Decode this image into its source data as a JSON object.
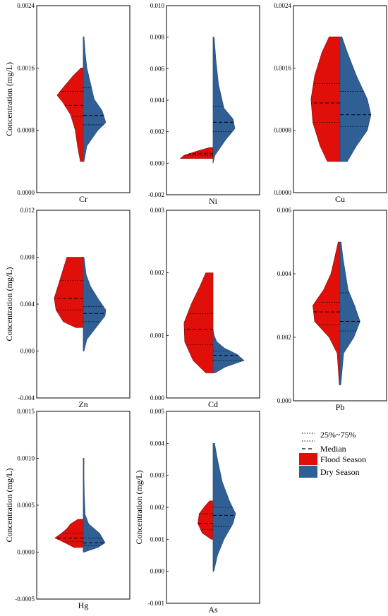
{
  "colors": {
    "flood": "#e00f0a",
    "dry": "#2f5f95",
    "dry_edge": "#2e4f78",
    "flood_edge": "#7a0f0a"
  },
  "legend": {
    "iqr_label": "25%~75%",
    "median_label": "Median",
    "flood_label": "Flood Season",
    "dry_label": "Dry Season"
  },
  "chart_data": [
    {
      "type": "violin",
      "category": "Cr",
      "ylabel": "Concentration (mg/L)",
      "ylim": [
        0,
        0.0024
      ],
      "yticks": [
        "0.0000",
        "0.0008",
        "0.0016",
        "0.0024"
      ],
      "flood": {
        "profile": [
          [
            0.0004,
            0.08
          ],
          [
            0.0006,
            0.16
          ],
          [
            0.0008,
            0.22
          ],
          [
            0.001,
            0.35
          ],
          [
            0.00115,
            0.55
          ],
          [
            0.00125,
            0.72
          ],
          [
            0.00135,
            0.55
          ],
          [
            0.0015,
            0.28
          ],
          [
            0.0016,
            0.06
          ]
        ],
        "median": 0.00112,
        "q1": 0.00098,
        "q3": 0.0013
      },
      "dry": {
        "profile": [
          [
            0.0004,
            0.02
          ],
          [
            0.0006,
            0.1
          ],
          [
            0.0008,
            0.4
          ],
          [
            0.0009,
            0.62
          ],
          [
            0.00105,
            0.52
          ],
          [
            0.0012,
            0.3
          ],
          [
            0.0014,
            0.2
          ],
          [
            0.0016,
            0.1
          ],
          [
            0.0018,
            0.05
          ],
          [
            0.002,
            0.02
          ]
        ],
        "median": 0.00099,
        "q1": 0.00087,
        "q3": 0.00135
      }
    },
    {
      "type": "violin",
      "category": "Ni",
      "ylabel": "",
      "ylim": [
        -0.002,
        0.01
      ],
      "yticks": [
        "-0.002",
        "0.000",
        "0.002",
        "0.004",
        "0.006",
        "0.008",
        "0.010"
      ],
      "flood": {
        "profile": [
          [
            0.0003,
            0.9
          ],
          [
            0.0005,
            0.8
          ],
          [
            0.0008,
            0.4
          ],
          [
            0.001,
            0.1
          ]
        ],
        "median": 0.0006,
        "q1": 0.0005,
        "q3": 0.0007
      },
      "dry": {
        "profile": [
          [
            0.0,
            0.0
          ],
          [
            0.0005,
            0.05
          ],
          [
            0.0015,
            0.35
          ],
          [
            0.0022,
            0.6
          ],
          [
            0.0028,
            0.55
          ],
          [
            0.0035,
            0.3
          ],
          [
            0.005,
            0.15
          ],
          [
            0.0065,
            0.08
          ],
          [
            0.008,
            0.03
          ]
        ],
        "median": 0.0026,
        "q1": 0.002,
        "q3": 0.0036
      }
    },
    {
      "type": "violin",
      "category": "Cu",
      "ylabel": "",
      "ylim": [
        0,
        0.0024
      ],
      "yticks": [
        "0.0000",
        "0.0008",
        "0.0016",
        "0.0024"
      ],
      "flood": {
        "profile": [
          [
            0.0004,
            0.35
          ],
          [
            0.0006,
            0.55
          ],
          [
            0.0009,
            0.75
          ],
          [
            0.0012,
            0.8
          ],
          [
            0.0015,
            0.7
          ],
          [
            0.0018,
            0.5
          ],
          [
            0.002,
            0.3
          ]
        ],
        "median": 0.00115,
        "q1": 0.0009,
        "q3": 0.0014
      },
      "dry": {
        "profile": [
          [
            0.0004,
            0.2
          ],
          [
            0.0006,
            0.45
          ],
          [
            0.0008,
            0.75
          ],
          [
            0.001,
            0.85
          ],
          [
            0.0012,
            0.75
          ],
          [
            0.0015,
            0.45
          ],
          [
            0.0018,
            0.2
          ],
          [
            0.002,
            0.05
          ]
        ],
        "median": 0.001,
        "q1": 0.00085,
        "q3": 0.0013
      }
    },
    {
      "type": "violin",
      "category": "Zn",
      "ylabel": "Concentration (mg/L)",
      "ylim": [
        -0.004,
        0.012
      ],
      "yticks": [
        "-0.004",
        "0.000",
        "0.004",
        "0.008",
        "0.012"
      ],
      "flood": {
        "profile": [
          [
            0.002,
            0.2
          ],
          [
            0.0025,
            0.55
          ],
          [
            0.0035,
            0.75
          ],
          [
            0.0045,
            0.8
          ],
          [
            0.0055,
            0.7
          ],
          [
            0.007,
            0.55
          ],
          [
            0.008,
            0.45
          ]
        ],
        "median": 0.0045,
        "q1": 0.0035,
        "q3": 0.006
      },
      "dry": {
        "profile": [
          [
            0.0,
            0.02
          ],
          [
            0.001,
            0.1
          ],
          [
            0.002,
            0.35
          ],
          [
            0.003,
            0.6
          ],
          [
            0.0035,
            0.62
          ],
          [
            0.0045,
            0.4
          ],
          [
            0.0055,
            0.2
          ],
          [
            0.0065,
            0.08
          ],
          [
            0.008,
            0.02
          ]
        ],
        "median": 0.0032,
        "q1": 0.0025,
        "q3": 0.0038
      }
    },
    {
      "type": "violin",
      "category": "Cd",
      "ylabel": "",
      "ylim": [
        0,
        0.003
      ],
      "yticks": [
        "0.000",
        "0.001",
        "0.002",
        "0.003"
      ],
      "flood": {
        "profile": [
          [
            0.0004,
            0.2
          ],
          [
            0.0006,
            0.55
          ],
          [
            0.0009,
            0.78
          ],
          [
            0.0012,
            0.8
          ],
          [
            0.0015,
            0.6
          ],
          [
            0.0018,
            0.35
          ],
          [
            0.002,
            0.2
          ]
        ],
        "median": 0.0011,
        "q1": 0.00085,
        "q3": 0.00135
      },
      "dry": {
        "profile": [
          [
            0.0004,
            0.05
          ],
          [
            0.0005,
            0.35
          ],
          [
            0.0006,
            0.85
          ],
          [
            0.0007,
            0.65
          ],
          [
            0.0008,
            0.3
          ],
          [
            0.0009,
            0.1
          ],
          [
            0.001,
            0.03
          ],
          [
            0.0011,
            0.0
          ]
        ],
        "median": 0.00068,
        "q1": 0.0006,
        "q3": 0.00075
      }
    },
    {
      "type": "violin",
      "category": "Pb",
      "ylabel": "",
      "ylim": [
        0,
        0.006
      ],
      "yticks": [
        "0.000",
        "0.002",
        "0.004",
        "0.006"
      ],
      "flood": {
        "profile": [
          [
            0.0005,
            0.02
          ],
          [
            0.0015,
            0.08
          ],
          [
            0.002,
            0.3
          ],
          [
            0.0025,
            0.7
          ],
          [
            0.003,
            0.75
          ],
          [
            0.0035,
            0.45
          ],
          [
            0.004,
            0.25
          ],
          [
            0.0045,
            0.15
          ],
          [
            0.005,
            0.05
          ]
        ],
        "median": 0.0028,
        "q1": 0.0024,
        "q3": 0.0031
      },
      "dry": {
        "profile": [
          [
            0.0005,
            0.02
          ],
          [
            0.0015,
            0.1
          ],
          [
            0.002,
            0.38
          ],
          [
            0.0025,
            0.55
          ],
          [
            0.003,
            0.4
          ],
          [
            0.0035,
            0.22
          ],
          [
            0.004,
            0.15
          ],
          [
            0.0045,
            0.08
          ],
          [
            0.005,
            0.03
          ]
        ],
        "median": 0.0025,
        "q1": 0.0022,
        "q3": 0.0034
      }
    },
    {
      "type": "violin",
      "category": "Hg",
      "ylabel": "Concentration (mg/L)",
      "ylim": [
        -0.0005,
        0.0015
      ],
      "yticks": [
        "-0.0005",
        "0.0000",
        "0.0005",
        "0.0010",
        "0.0015"
      ],
      "flood": {
        "profile": [
          [
            5e-05,
            0.25
          ],
          [
            0.0001,
            0.5
          ],
          [
            0.00015,
            0.78
          ],
          [
            0.0002,
            0.6
          ],
          [
            0.00025,
            0.45
          ],
          [
            0.0003,
            0.35
          ],
          [
            0.00035,
            0.15
          ]
        ],
        "median": 0.00015,
        "q1": 0.00011,
        "q3": 0.0002
      },
      "dry": {
        "profile": [
          [
            0.0,
            0.02
          ],
          [
            5e-05,
            0.4
          ],
          [
            0.0001,
            0.6
          ],
          [
            0.0002,
            0.45
          ],
          [
            0.0003,
            0.15
          ],
          [
            0.0004,
            0.05
          ],
          [
            0.0006,
            0.03
          ],
          [
            0.0008,
            0.02
          ],
          [
            0.001,
            0.02
          ]
        ],
        "median": 0.0001,
        "q1": 7e-05,
        "q3": 0.00015
      }
    },
    {
      "type": "violin",
      "category": "As",
      "ylabel": "Concentration (mg/L)",
      "ylim": [
        -0.001,
        0.005
      ],
      "yticks": [
        "-0.001",
        "0.000",
        "0.001",
        "0.002",
        "0.003",
        "0.004",
        "0.005"
      ],
      "flood": {
        "profile": [
          [
            0.001,
            0.05
          ],
          [
            0.0012,
            0.3
          ],
          [
            0.0015,
            0.42
          ],
          [
            0.0018,
            0.38
          ],
          [
            0.002,
            0.25
          ],
          [
            0.0022,
            0.1
          ]
        ],
        "median": 0.0015,
        "q1": 0.0013,
        "q3": 0.0018
      },
      "dry": {
        "profile": [
          [
            0.0,
            0.02
          ],
          [
            0.0005,
            0.12
          ],
          [
            0.001,
            0.3
          ],
          [
            0.0015,
            0.55
          ],
          [
            0.0018,
            0.62
          ],
          [
            0.0022,
            0.45
          ],
          [
            0.0028,
            0.25
          ],
          [
            0.0035,
            0.12
          ],
          [
            0.004,
            0.04
          ]
        ],
        "median": 0.00175,
        "q1": 0.0014,
        "q3": 0.002
      }
    }
  ]
}
